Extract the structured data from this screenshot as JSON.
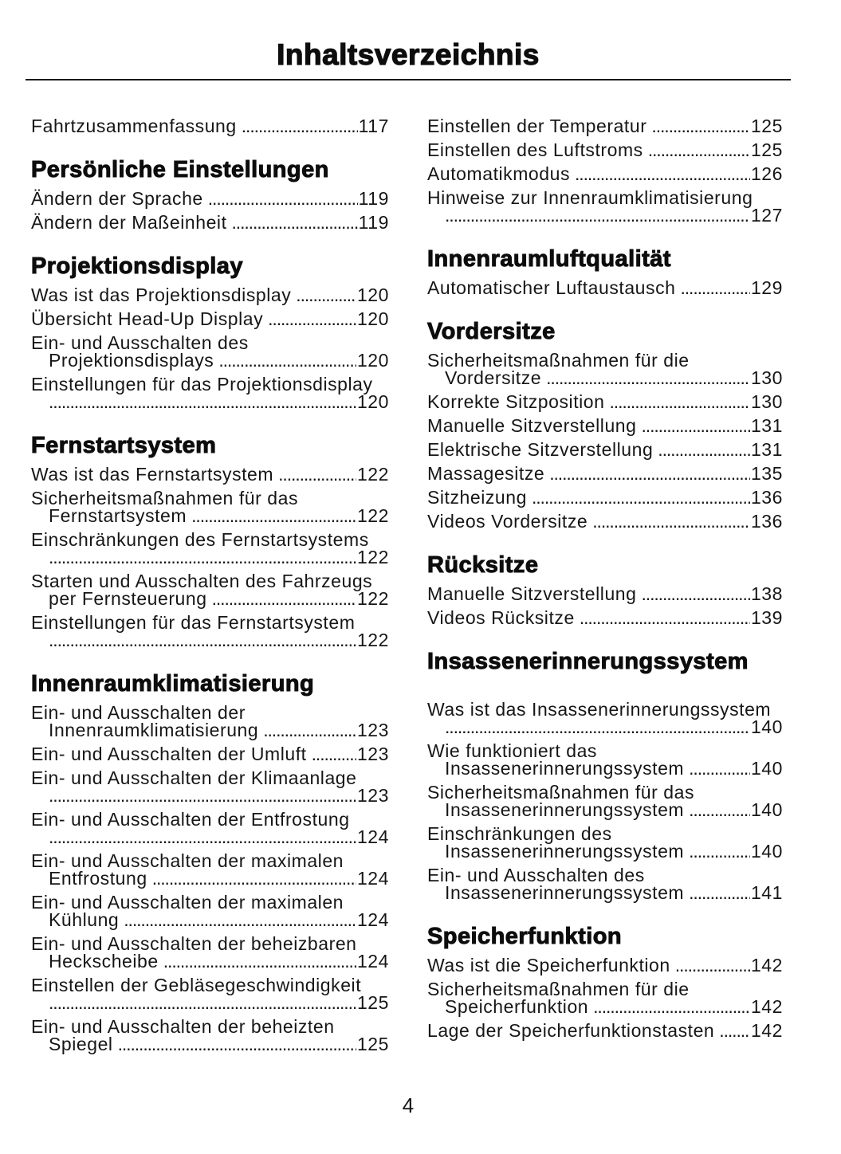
{
  "page": {
    "title": "Inhaltsverzeichnis",
    "number": "4"
  },
  "toc": {
    "left": [
      {
        "type": "entry",
        "lines": [
          "Fahrtzusammenfassung"
        ],
        "page": "117"
      },
      {
        "type": "heading",
        "text": "Persönliche Einstellungen"
      },
      {
        "type": "entry",
        "lines": [
          "Ändern der Sprache"
        ],
        "page": "119"
      },
      {
        "type": "entry",
        "lines": [
          "Ändern der Maßeinheit"
        ],
        "page": "119"
      },
      {
        "type": "heading",
        "text": "Projektionsdisplay"
      },
      {
        "type": "entry",
        "lines": [
          "Was ist das Projektionsdisplay"
        ],
        "page": "120"
      },
      {
        "type": "entry",
        "lines": [
          "Übersicht Head-Up Display"
        ],
        "page": "120"
      },
      {
        "type": "entry",
        "lines": [
          "Ein- und Ausschalten des",
          "Projektionsdisplays"
        ],
        "page": "120"
      },
      {
        "type": "entry",
        "lines": [
          "Einstellungen für das Projektionsdisplay",
          ""
        ],
        "page": "120"
      },
      {
        "type": "heading",
        "text": "Fernstartsystem"
      },
      {
        "type": "entry",
        "lines": [
          "Was ist das Fernstartsystem"
        ],
        "page": "122"
      },
      {
        "type": "entry",
        "lines": [
          "Sicherheitsmaßnahmen für das",
          "Fernstartsystem"
        ],
        "page": "122"
      },
      {
        "type": "entry",
        "lines": [
          "Einschränkungen des Fernstartsystems",
          ""
        ],
        "page": "122"
      },
      {
        "type": "entry",
        "lines": [
          "Starten und Ausschalten des Fahrzeugs",
          "per Fernsteuerung"
        ],
        "page": "122"
      },
      {
        "type": "entry",
        "lines": [
          "Einstellungen für das Fernstartsystem",
          ""
        ],
        "page": "122"
      },
      {
        "type": "heading",
        "text": "Innenraumklimatisierung"
      },
      {
        "type": "entry",
        "lines": [
          "Ein- und Ausschalten der",
          "Innenraumklimatisierung"
        ],
        "page": "123"
      },
      {
        "type": "entry",
        "lines": [
          "Ein- und Ausschalten der Umluft"
        ],
        "page": "123"
      },
      {
        "type": "entry",
        "lines": [
          "Ein- und Ausschalten der Klimaanlage",
          ""
        ],
        "page": "123"
      },
      {
        "type": "entry",
        "lines": [
          "Ein- und Ausschalten der Entfrostung",
          ""
        ],
        "page": "124"
      },
      {
        "type": "entry",
        "lines": [
          "Ein- und Ausschalten der maximalen",
          "Entfrostung"
        ],
        "page": "124"
      },
      {
        "type": "entry",
        "lines": [
          "Ein- und Ausschalten der maximalen",
          "Kühlung"
        ],
        "page": "124"
      },
      {
        "type": "entry",
        "lines": [
          "Ein- und Ausschalten der beheizbaren",
          "Heckscheibe"
        ],
        "page": "124"
      },
      {
        "type": "entry",
        "lines": [
          "Einstellen der Gebläsegeschwindigkeit",
          ""
        ],
        "page": "125"
      },
      {
        "type": "entry",
        "lines": [
          "Ein- und Ausschalten der beheizten",
          "Spiegel"
        ],
        "page": "125"
      }
    ],
    "right": [
      {
        "type": "entry",
        "lines": [
          "Einstellen der Temperatur"
        ],
        "page": "125"
      },
      {
        "type": "entry",
        "lines": [
          "Einstellen des Luftstroms"
        ],
        "page": "125"
      },
      {
        "type": "entry",
        "lines": [
          "Automatikmodus"
        ],
        "page": "126"
      },
      {
        "type": "entry",
        "lines": [
          "Hinweise zur Innenraumklimatisierung",
          ""
        ],
        "page": "127"
      },
      {
        "type": "heading",
        "text": "Innenraumluftqualität"
      },
      {
        "type": "entry",
        "lines": [
          "Automatischer Luftaustausch"
        ],
        "page": "129"
      },
      {
        "type": "heading",
        "text": "Vordersitze"
      },
      {
        "type": "entry",
        "lines": [
          "Sicherheitsmaßnahmen für die",
          "Vordersitze"
        ],
        "page": "130"
      },
      {
        "type": "entry",
        "lines": [
          "Korrekte Sitzposition"
        ],
        "page": "130"
      },
      {
        "type": "entry",
        "lines": [
          "Manuelle Sitzverstellung"
        ],
        "page": "131"
      },
      {
        "type": "entry",
        "lines": [
          "Elektrische Sitzverstellung"
        ],
        "page": "131"
      },
      {
        "type": "entry",
        "lines": [
          "Massagesitze"
        ],
        "page": "135"
      },
      {
        "type": "entry",
        "lines": [
          "Sitzheizung"
        ],
        "page": "136"
      },
      {
        "type": "entry",
        "lines": [
          "Videos Vordersitze"
        ],
        "page": "136"
      },
      {
        "type": "heading",
        "text": "Rücksitze"
      },
      {
        "type": "entry",
        "lines": [
          "Manuelle Sitzverstellung"
        ],
        "page": "138"
      },
      {
        "type": "entry",
        "lines": [
          "Videos Rücksitze"
        ],
        "page": "139"
      },
      {
        "type": "heading",
        "text": "Insassenerinnerungssystem",
        "extra_space_after": true
      },
      {
        "type": "entry",
        "lines": [
          "Was ist das Insassenerinnerungssystem",
          ""
        ],
        "page": "140"
      },
      {
        "type": "entry",
        "lines": [
          "Wie funktioniert das",
          "Insassenerinnerungssystem"
        ],
        "page": "140"
      },
      {
        "type": "entry",
        "lines": [
          "Sicherheitsmaßnahmen für das",
          "Insassenerinnerungssystem"
        ],
        "page": "140"
      },
      {
        "type": "entry",
        "lines": [
          "Einschränkungen des",
          "Insassenerinnerungssystem"
        ],
        "page": "140"
      },
      {
        "type": "entry",
        "lines": [
          "Ein- und Ausschalten des",
          "Insassenerinnerungssystem"
        ],
        "page": "141"
      },
      {
        "type": "heading",
        "text": "Speicherfunktion"
      },
      {
        "type": "entry",
        "lines": [
          "Was ist die Speicherfunktion"
        ],
        "page": "142"
      },
      {
        "type": "entry",
        "lines": [
          "Sicherheitsmaßnahmen für die",
          "Speicherfunktion"
        ],
        "page": "142"
      },
      {
        "type": "entry",
        "lines": [
          "Lage der Speicherfunktionstasten"
        ],
        "page": "142"
      }
    ]
  }
}
